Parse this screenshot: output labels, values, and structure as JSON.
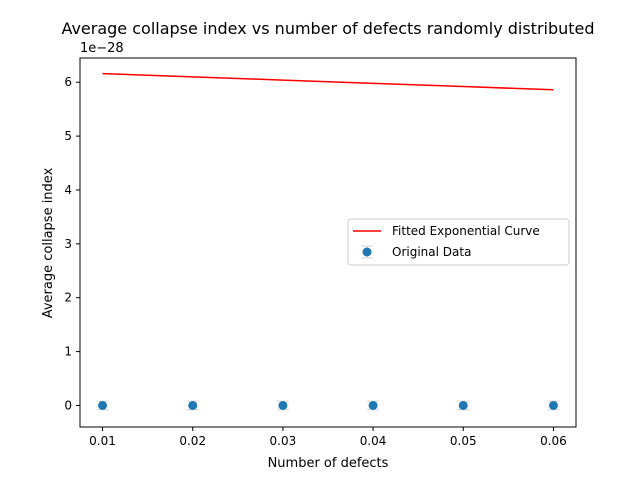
{
  "chart_data": {
    "type": "scatter",
    "title": "Average collapse index vs number of defects randomly distributed",
    "xlabel": "Number of defects",
    "ylabel": "Average collapse index",
    "y_scale_label": "1e−28",
    "y_scale_exponent": -28,
    "xlim": [
      0.0075,
      0.0625
    ],
    "ylim": [
      -0.4,
      6.45
    ],
    "x_ticks": [
      0.01,
      0.02,
      0.03,
      0.04,
      0.05,
      0.06
    ],
    "x_tick_labels": [
      "0.01",
      "0.02",
      "0.03",
      "0.04",
      "0.05",
      "0.06"
    ],
    "y_ticks": [
      0,
      1,
      2,
      3,
      4,
      5,
      6
    ],
    "y_tick_labels": [
      "0",
      "1",
      "2",
      "3",
      "4",
      "5",
      "6"
    ],
    "grid": false,
    "legend_position": "center-right",
    "series": [
      {
        "name": "Fitted Exponential Curve",
        "kind": "line",
        "color": "#ff0000",
        "x": [
          0.01,
          0.02,
          0.03,
          0.04,
          0.05,
          0.06
        ],
        "y": [
          6.16,
          6.1,
          6.04,
          5.98,
          5.92,
          5.86
        ]
      },
      {
        "name": "Original Data",
        "kind": "errorbar-scatter",
        "color": "#1f77b4",
        "errorbar_color": "#d3d3d3",
        "x": [
          0.01,
          0.02,
          0.03,
          0.04,
          0.05,
          0.06
        ],
        "y": [
          0,
          0,
          0,
          0,
          0,
          0
        ],
        "yerr": [
          0.08,
          0.08,
          0.08,
          0.08,
          0.08,
          0.08
        ]
      }
    ]
  }
}
